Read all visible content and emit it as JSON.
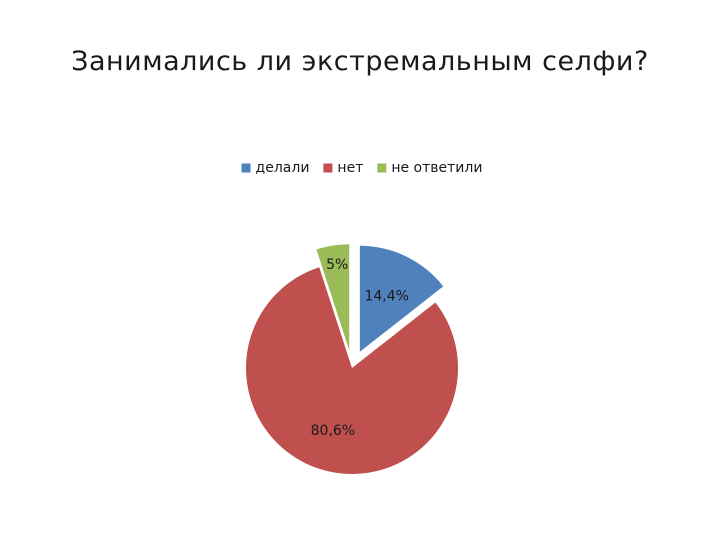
{
  "slide": {
    "title": "Занимались ли экстремальным селфи?"
  },
  "chart_data": {
    "type": "pie",
    "title": "",
    "legend_position": "top",
    "slices": [
      {
        "name": "делали",
        "value": 14.4,
        "label": "14,4%",
        "color": "#4f81bd"
      },
      {
        "name": "нет",
        "value": 80.6,
        "label": "80,6%",
        "color": "#c0504d"
      },
      {
        "name": "не ответили",
        "value": 5,
        "label": "5%",
        "color": "#9bbb59"
      }
    ]
  }
}
